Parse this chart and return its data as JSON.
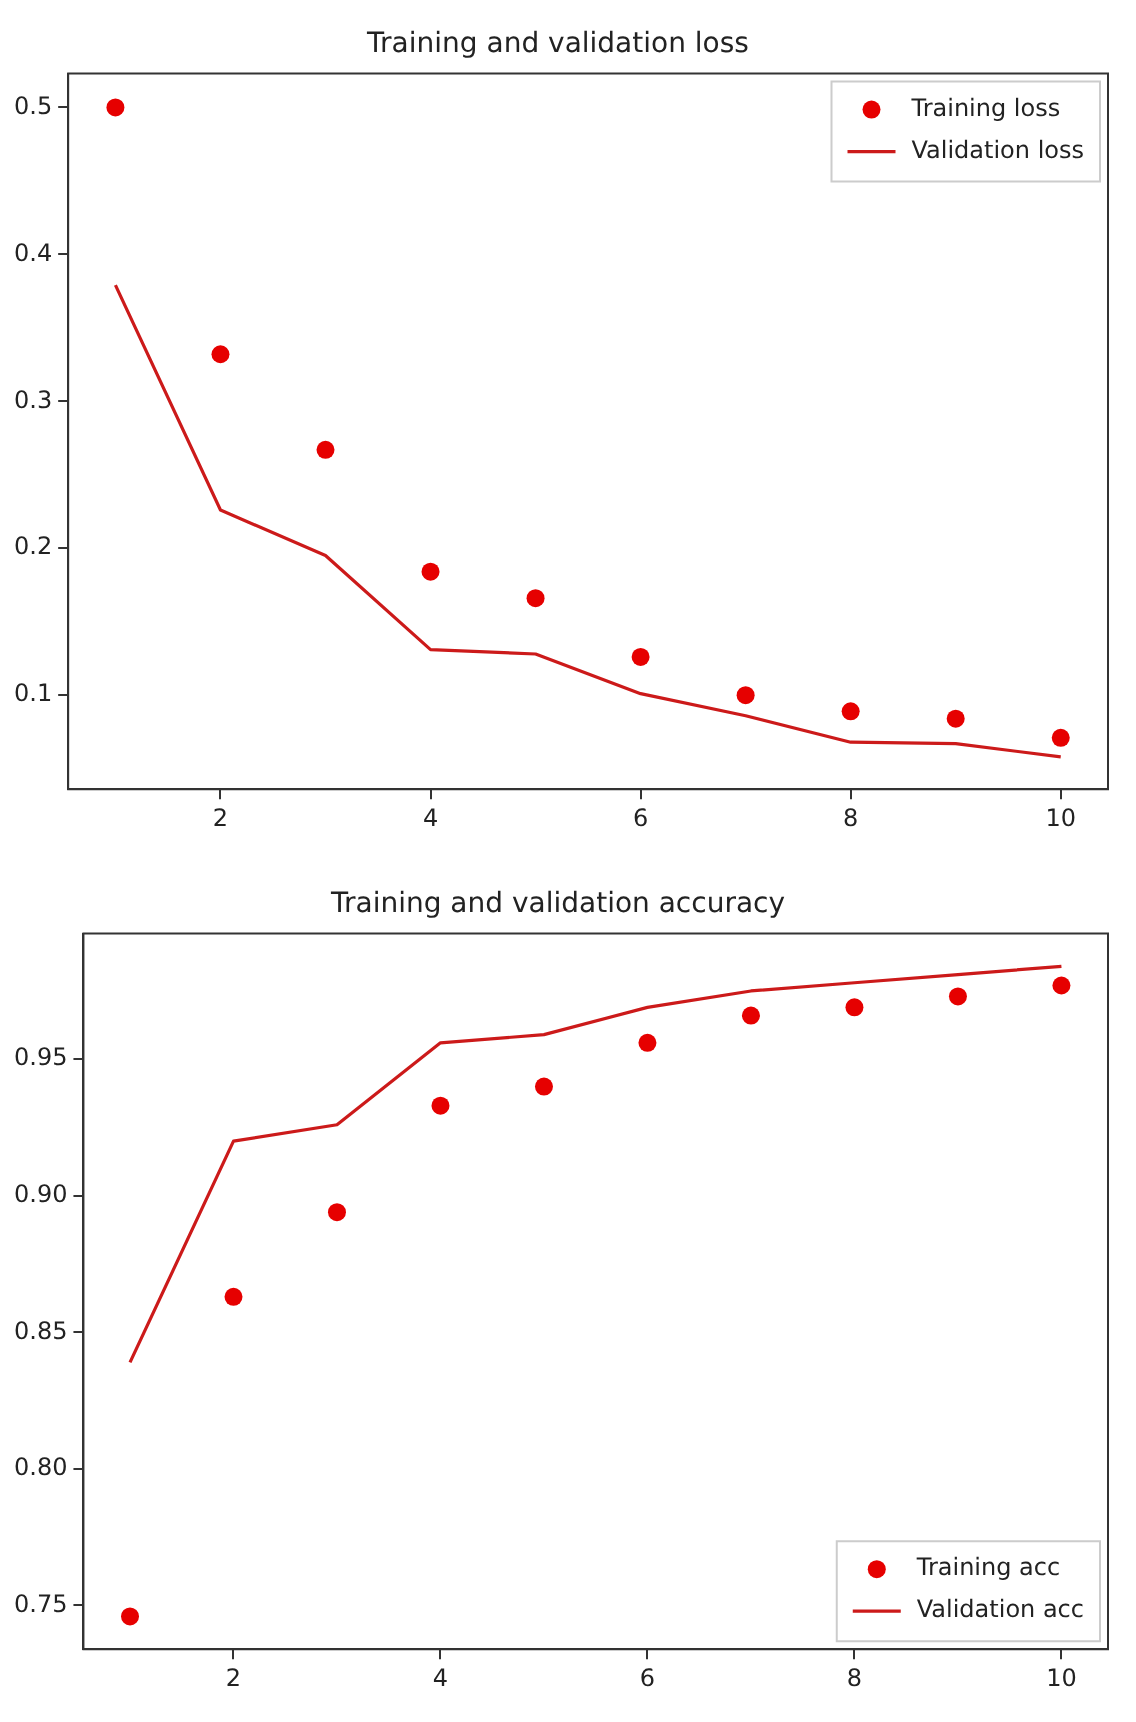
{
  "chart_data": [
    {
      "type": "line",
      "title": "Training and validation loss",
      "xlim": [
        0.55,
        10.45
      ],
      "xticks": [
        2,
        4,
        6,
        8,
        10
      ],
      "ylim": [
        0.036,
        0.523
      ],
      "yticks": [
        0.1,
        0.2,
        0.3,
        0.4,
        0.5
      ],
      "grid": false,
      "legend": "top right",
      "x": [
        1,
        2,
        3,
        4,
        5,
        6,
        7,
        8,
        9,
        10
      ],
      "series": [
        {
          "name": "Training loss",
          "type": "scatter",
          "marker": "circle",
          "color": "#e60000",
          "values": [
            0.5,
            0.332,
            0.267,
            0.184,
            0.166,
            0.126,
            0.1,
            0.089,
            0.084,
            0.071
          ]
        },
        {
          "name": "Validation loss",
          "type": "line",
          "marker": "none",
          "line_style": "solid",
          "color": "#cc1a1a",
          "values": [
            0.379,
            0.226,
            0.195,
            0.131,
            0.128,
            0.101,
            0.086,
            0.068,
            0.067,
            0.058
          ]
        }
      ]
    },
    {
      "type": "line",
      "title": "Training and validation accuracy",
      "xlim": [
        0.55,
        10.45
      ],
      "xticks": [
        2,
        4,
        6,
        8,
        10
      ],
      "ylim": [
        0.734,
        0.996
      ],
      "yticks": [
        {
          "value": 0.75,
          "label": "0.75"
        },
        {
          "value": 0.8,
          "label": "0.80"
        },
        {
          "value": 0.85,
          "label": "0.85"
        },
        {
          "value": 0.9,
          "label": "0.90"
        },
        {
          "value": 0.95,
          "label": "0.95"
        }
      ],
      "grid": false,
      "legend": "bottom right",
      "x": [
        1,
        2,
        3,
        4,
        5,
        6,
        7,
        8,
        9,
        10
      ],
      "series": [
        {
          "name": "Training acc",
          "type": "scatter",
          "marker": "circle",
          "color": "#e60000",
          "values": [
            0.746,
            0.863,
            0.894,
            0.933,
            0.94,
            0.956,
            0.966,
            0.969,
            0.973,
            0.977
          ]
        },
        {
          "name": "Validation acc",
          "type": "line",
          "marker": "none",
          "line_style": "solid",
          "color": "#cc1a1a",
          "values": [
            0.839,
            0.92,
            0.926,
            0.956,
            0.959,
            0.969,
            0.975,
            0.978,
            0.981,
            0.984
          ]
        }
      ]
    }
  ]
}
